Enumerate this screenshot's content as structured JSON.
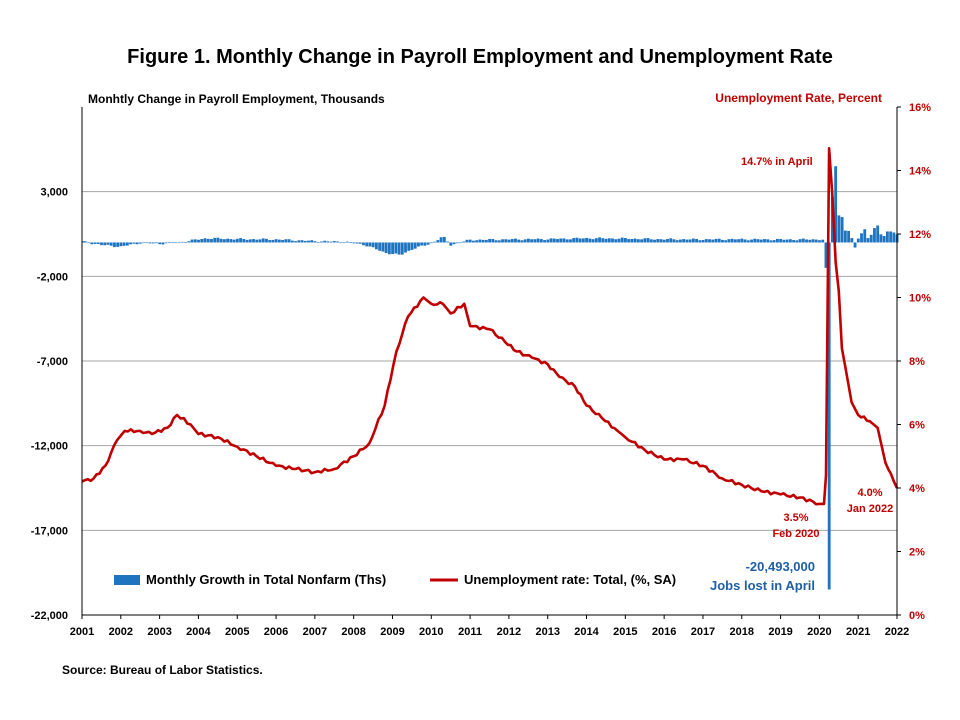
{
  "chart_data": {
    "type": "bar+line",
    "title": "Figure 1. Monthly Change in Payroll Employment and Unemployment Rate",
    "left_axis": {
      "title": "Monhtly Change in Payroll Employment, Thousands",
      "range": [
        -22000,
        8000
      ],
      "ticks": [
        3000,
        -2000,
        -7000,
        -12000,
        -17000,
        -22000
      ],
      "tick_labels": [
        "3,000",
        "-2,000",
        "-7,000",
        "-12,000",
        "-17,000",
        "-22,000"
      ]
    },
    "right_axis": {
      "title": "Unemployment Rate, Percent",
      "range": [
        0,
        16
      ],
      "ticks": [
        0,
        2,
        4,
        6,
        8,
        10,
        12,
        14,
        16
      ],
      "tick_labels": [
        "0%",
        "2%",
        "4%",
        "6%",
        "8%",
        "10%",
        "12%",
        "14%",
        "16%"
      ]
    },
    "x_axis": {
      "range": [
        2001,
        2022
      ],
      "tick_labels": [
        "2001",
        "2002",
        "2003",
        "2004",
        "2005",
        "2006",
        "2007",
        "2008",
        "2009",
        "2010",
        "2011",
        "2012",
        "2013",
        "2014",
        "2015",
        "2016",
        "2017",
        "2018",
        "2019",
        "2020",
        "2021",
        "2022"
      ]
    },
    "grid": "horizontal",
    "colors": {
      "bars": "#1f74c0",
      "line": "#c00000",
      "grid": "#a6a6a6"
    },
    "series": [
      {
        "name": "Monthly Growth in Total Nonfarm (Ths)",
        "type": "bar",
        "start": "2001-01",
        "frequency": "annual anchor points, interpolated monthly",
        "anchors": [
          [
            2001.0,
            50
          ],
          [
            2001.5,
            -150
          ],
          [
            2002.0,
            -250
          ],
          [
            2002.5,
            -20
          ],
          [
            2003.0,
            -80
          ],
          [
            2003.6,
            40
          ],
          [
            2004.2,
            250
          ],
          [
            2005.0,
            200
          ],
          [
            2006.0,
            180
          ],
          [
            2007.0,
            80
          ],
          [
            2007.8,
            30
          ],
          [
            2008.3,
            -150
          ],
          [
            2008.8,
            -600
          ],
          [
            2009.2,
            -750
          ],
          [
            2009.5,
            -400
          ],
          [
            2010.0,
            -50
          ],
          [
            2010.3,
            350
          ],
          [
            2010.5,
            -150
          ],
          [
            2011.0,
            150
          ],
          [
            2012.0,
            180
          ],
          [
            2013.0,
            200
          ],
          [
            2014.0,
            250
          ],
          [
            2015.0,
            230
          ],
          [
            2016.0,
            190
          ],
          [
            2017.0,
            180
          ],
          [
            2018.0,
            190
          ],
          [
            2019.0,
            170
          ],
          [
            2020.0,
            180
          ],
          [
            2020.17,
            150
          ]
        ],
        "notable_values": [
          {
            "date": "2020-03",
            "value": -1500
          },
          {
            "date": "2020-04",
            "value": -20493
          },
          {
            "date": "2020-05",
            "value": 2700
          },
          {
            "date": "2020-06",
            "value": 4500
          },
          {
            "date": "2020-07",
            "value": 1600
          },
          {
            "date": "2020-08",
            "value": 1500
          },
          {
            "date": "2020-09",
            "value": 700
          },
          {
            "date": "2020-10",
            "value": 680
          },
          {
            "date": "2020-11",
            "value": 260
          },
          {
            "date": "2020-12",
            "value": -300
          },
          {
            "date": "2021-01",
            "value": 230
          },
          {
            "date": "2021-02",
            "value": 540
          },
          {
            "date": "2021-03",
            "value": 780
          },
          {
            "date": "2021-04",
            "value": 260
          },
          {
            "date": "2021-05",
            "value": 450
          },
          {
            "date": "2021-06",
            "value": 850
          },
          {
            "date": "2021-07",
            "value": 1000
          },
          {
            "date": "2021-08",
            "value": 480
          },
          {
            "date": "2021-09",
            "value": 380
          },
          {
            "date": "2021-10",
            "value": 650
          },
          {
            "date": "2021-11",
            "value": 650
          },
          {
            "date": "2021-12",
            "value": 590
          },
          {
            "date": "2022-01",
            "value": 470
          }
        ]
      },
      {
        "name": "Unemployment rate: Total, (%, SA)",
        "type": "line",
        "points": [
          [
            2001.0,
            4.2
          ],
          [
            2001.3,
            4.3
          ],
          [
            2001.6,
            4.7
          ],
          [
            2001.9,
            5.5
          ],
          [
            2002.1,
            5.8
          ],
          [
            2002.5,
            5.8
          ],
          [
            2002.8,
            5.7
          ],
          [
            2003.2,
            5.9
          ],
          [
            2003.45,
            6.3
          ],
          [
            2003.8,
            6.0
          ],
          [
            2004.0,
            5.7
          ],
          [
            2004.5,
            5.6
          ],
          [
            2005.0,
            5.3
          ],
          [
            2005.5,
            5.0
          ],
          [
            2006.0,
            4.7
          ],
          [
            2006.5,
            4.6
          ],
          [
            2007.0,
            4.5
          ],
          [
            2007.5,
            4.6
          ],
          [
            2008.0,
            5.0
          ],
          [
            2008.4,
            5.4
          ],
          [
            2008.8,
            6.6
          ],
          [
            2009.1,
            8.3
          ],
          [
            2009.4,
            9.4
          ],
          [
            2009.8,
            10.0
          ],
          [
            2010.0,
            9.8
          ],
          [
            2010.3,
            9.8
          ],
          [
            2010.5,
            9.5
          ],
          [
            2010.85,
            9.8
          ],
          [
            2011.0,
            9.1
          ],
          [
            2011.5,
            9.0
          ],
          [
            2011.9,
            8.6
          ],
          [
            2012.2,
            8.3
          ],
          [
            2012.6,
            8.1
          ],
          [
            2013.0,
            7.9
          ],
          [
            2013.3,
            7.5
          ],
          [
            2013.7,
            7.2
          ],
          [
            2014.0,
            6.6
          ],
          [
            2014.4,
            6.2
          ],
          [
            2014.8,
            5.8
          ],
          [
            2015.0,
            5.6
          ],
          [
            2015.5,
            5.2
          ],
          [
            2016.0,
            4.9
          ],
          [
            2016.5,
            4.9
          ],
          [
            2017.0,
            4.7
          ],
          [
            2017.5,
            4.3
          ],
          [
            2018.0,
            4.1
          ],
          [
            2018.5,
            3.9
          ],
          [
            2019.0,
            3.8
          ],
          [
            2019.5,
            3.7
          ],
          [
            2020.0,
            3.5
          ],
          [
            2020.12,
            3.5
          ],
          [
            2020.17,
            4.4
          ],
          [
            2020.25,
            14.7
          ],
          [
            2020.33,
            13.3
          ],
          [
            2020.42,
            11.1
          ],
          [
            2020.5,
            10.2
          ],
          [
            2020.58,
            8.4
          ],
          [
            2020.67,
            7.8
          ],
          [
            2020.83,
            6.7
          ],
          [
            2021.0,
            6.3
          ],
          [
            2021.3,
            6.1
          ],
          [
            2021.5,
            5.9
          ],
          [
            2021.7,
            4.8
          ],
          [
            2021.92,
            4.2
          ],
          [
            2022.0,
            4.0
          ]
        ]
      }
    ],
    "annotations": [
      {
        "text": "14.7% in April"
      },
      {
        "text": "3.5%"
      },
      {
        "text": "Feb 2020"
      },
      {
        "text": "4.0%"
      },
      {
        "text": "Jan 2022"
      },
      {
        "text": "-20,493,000"
      },
      {
        "text": "Jobs lost in April"
      }
    ]
  },
  "source": "Source: Bureau of Labor Statistics."
}
